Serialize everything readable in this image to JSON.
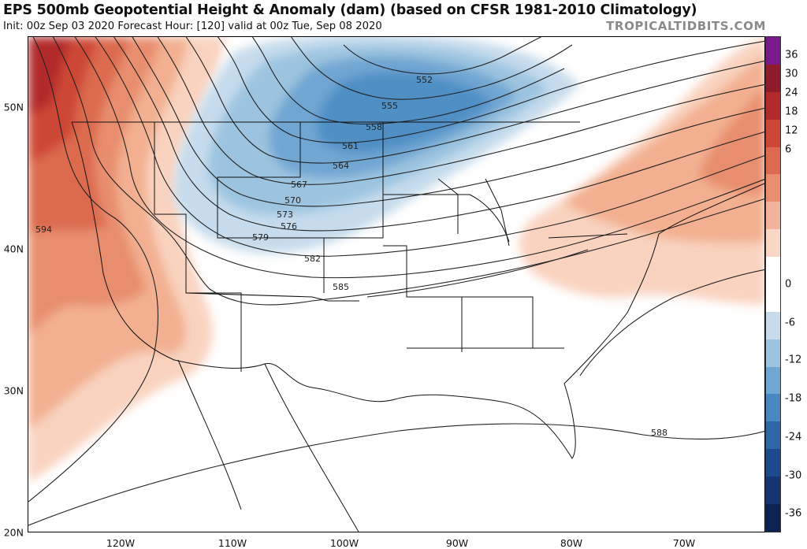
{
  "header": {
    "title": "EPS 500mb Geopotential Height & Anomaly (dam) (based on CFSR 1981-2010 Climatology)",
    "subtitle": "Init: 00z Sep 03 2020   Forecast Hour: [120]   valid at 00z Tue, Sep 08 2020",
    "brand": "TROPICALTIDBITS.COM"
  },
  "axes": {
    "lat_labels": [
      "50N",
      "40N",
      "30N",
      "20N"
    ],
    "lon_labels": [
      "120W",
      "110W",
      "100W",
      "90W",
      "80W",
      "70W"
    ]
  },
  "colorbar": {
    "labels": [
      "36",
      "30",
      "24",
      "18",
      "12",
      "6",
      "0",
      "-6",
      "-12",
      "-18",
      "-24",
      "-30",
      "-36"
    ],
    "colors": [
      "#7a1a8a",
      "#8e1c2a",
      "#b22a2a",
      "#cd4636",
      "#dc6a4e",
      "#e88e6e",
      "#f2b49a",
      "#f9d6c6",
      "#ffffff",
      "#ffffff",
      "#c6dcec",
      "#9cc4e0",
      "#6fa6d2",
      "#4a87c0",
      "#2e67a8",
      "#1d4a8e",
      "#143572",
      "#0c2252"
    ]
  },
  "contour_labels": [
    "552",
    "555",
    "558",
    "561",
    "564",
    "567",
    "570",
    "573",
    "576",
    "579",
    "582",
    "585",
    "588",
    "594"
  ],
  "colors": {
    "warm_anomaly": "#e07a5c",
    "cold_anomaly": "#4f8fc4",
    "contour": "#222222"
  }
}
